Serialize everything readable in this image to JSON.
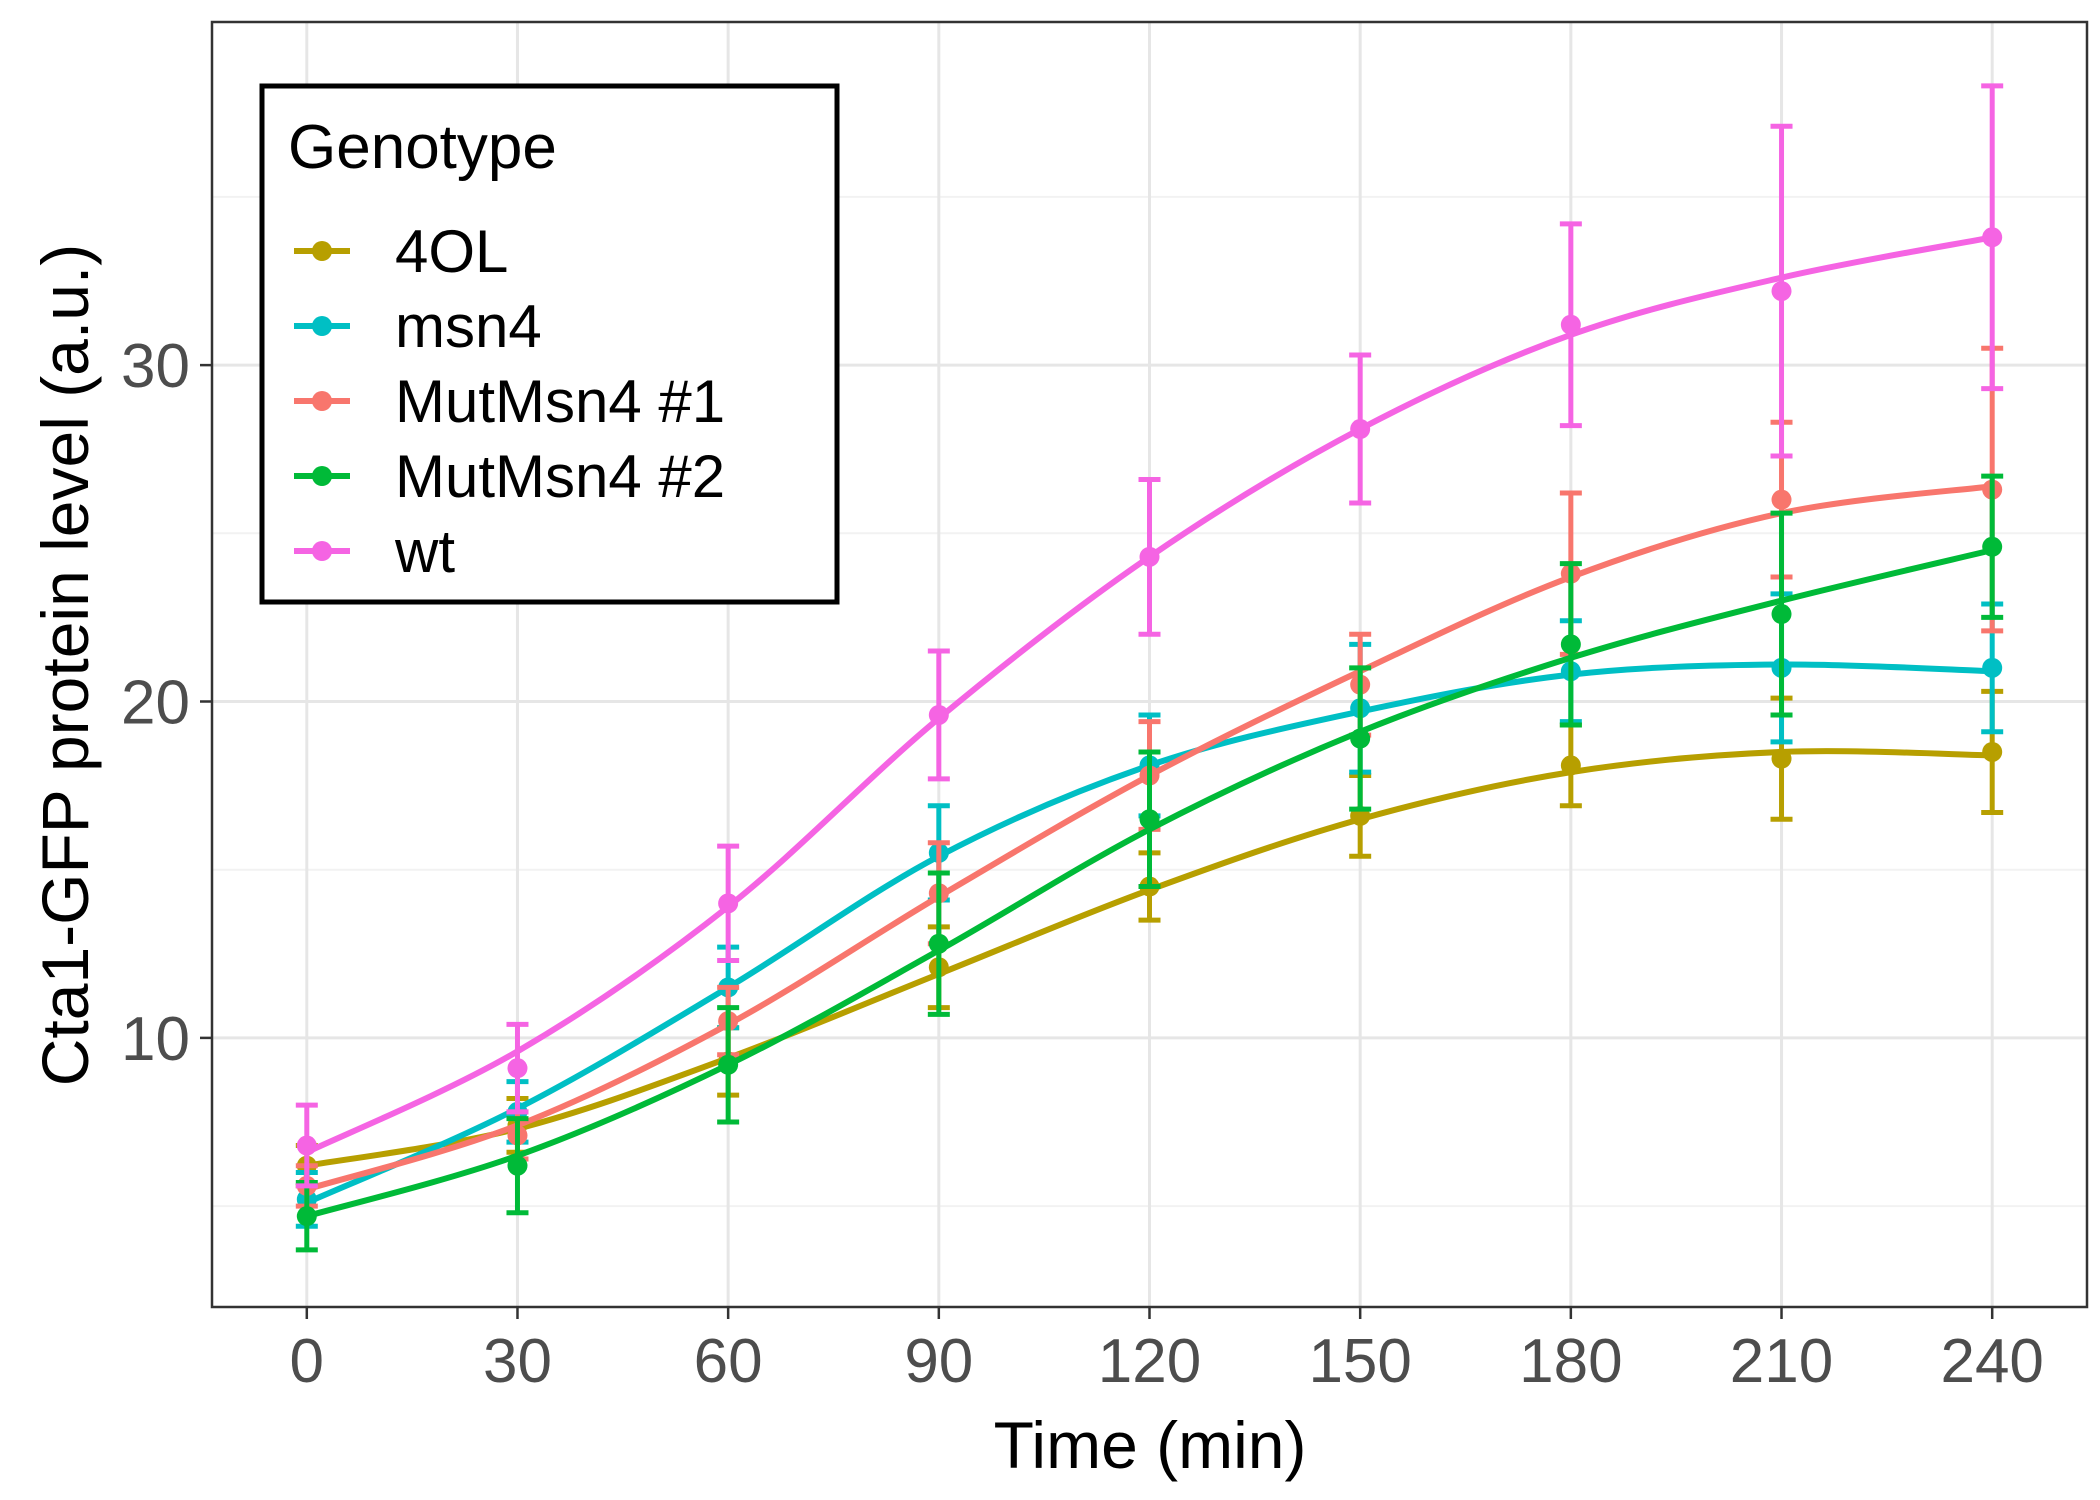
{
  "chart_data": {
    "type": "line",
    "xlabel": "Time (min)",
    "ylabel": "Cta1-GFP protein level (a.u.)",
    "x": [
      0,
      30,
      60,
      90,
      120,
      150,
      180,
      210,
      240
    ],
    "x_ticks": [
      "0",
      "30",
      "60",
      "90",
      "120",
      "150",
      "180",
      "210",
      "240"
    ],
    "xlim": [
      -13.5,
      253.5
    ],
    "y_ticks": [
      "10",
      "20",
      "30"
    ],
    "y_tick_values": [
      10,
      20,
      30
    ],
    "ylim": [
      2.0,
      40.2
    ],
    "grid": true,
    "legend": {
      "title": "Genotype",
      "position": "top-left"
    },
    "series": [
      {
        "name": "4OL",
        "color": "#B79F00",
        "values": [
          6.2,
          7.4,
          9.3,
          12.1,
          14.5,
          16.6,
          18.1,
          18.3,
          18.5
        ],
        "error": [
          0.6,
          0.8,
          1.0,
          1.2,
          1.0,
          1.2,
          1.2,
          1.8,
          1.8
        ],
        "fit": [
          6.2,
          7.3,
          9.4,
          11.9,
          14.4,
          16.5,
          17.9,
          18.5,
          18.4
        ]
      },
      {
        "name": "msn4",
        "color": "#00BFC4",
        "values": [
          5.2,
          7.8,
          11.5,
          15.5,
          18.1,
          19.8,
          20.9,
          21.0,
          21.0
        ],
        "error": [
          0.8,
          0.9,
          1.2,
          1.4,
          1.5,
          1.9,
          1.5,
          2.2,
          1.9
        ],
        "fit": [
          5.1,
          7.9,
          11.5,
          15.4,
          18.1,
          19.7,
          20.8,
          21.1,
          20.9
        ]
      },
      {
        "name": "MutMsn4 #1",
        "color": "#F8766D",
        "values": [
          5.6,
          7.1,
          10.5,
          14.3,
          17.8,
          20.5,
          23.8,
          26.0,
          26.3
        ],
        "error": [
          0.6,
          0.7,
          1.0,
          1.5,
          1.6,
          1.5,
          2.4,
          2.3,
          4.2
        ],
        "fit": [
          5.5,
          7.4,
          10.4,
          14.2,
          17.8,
          20.9,
          23.7,
          25.6,
          26.4
        ]
      },
      {
        "name": "MutMsn4 #2",
        "color": "#00BA38",
        "values": [
          4.7,
          6.2,
          9.2,
          12.8,
          16.5,
          18.9,
          21.7,
          22.6,
          24.6
        ],
        "error": [
          1.0,
          1.4,
          1.7,
          2.1,
          2.0,
          2.1,
          2.4,
          3.0,
          2.1
        ],
        "fit": [
          4.7,
          6.5,
          9.2,
          12.6,
          16.2,
          19.1,
          21.3,
          23.0,
          24.5
        ]
      },
      {
        "name": "wt",
        "color": "#F564E3",
        "values": [
          6.8,
          9.1,
          14.0,
          19.6,
          24.3,
          28.1,
          31.2,
          32.2,
          33.8
        ],
        "error": [
          1.2,
          1.3,
          1.7,
          1.9,
          2.3,
          2.2,
          3.0,
          4.9,
          4.5
        ],
        "fit": [
          6.6,
          9.6,
          13.9,
          19.5,
          24.3,
          28.1,
          30.9,
          32.6,
          33.8
        ]
      }
    ]
  }
}
